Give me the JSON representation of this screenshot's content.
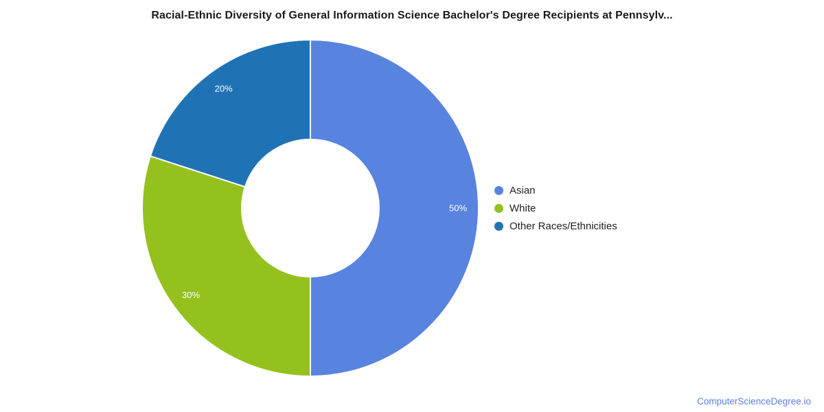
{
  "chart_data": {
    "type": "pie",
    "donut": true,
    "title": "Racial-Ethnic Diversity of General Information Science Bachelor's Degree Recipients at Pennsylv...",
    "start_angle_deg": 0,
    "direction": "clockwise",
    "label_color": "#ffffff",
    "legend_position": "right",
    "slices": [
      {
        "label": "Asian",
        "value": 50,
        "display": "50%",
        "color": "#5884e0"
      },
      {
        "label": "White",
        "value": 30,
        "display": "30%",
        "color": "#95c11e"
      },
      {
        "label": "Other Races/Ethnicities",
        "value": 20,
        "display": "20%",
        "color": "#1f73b5"
      }
    ]
  },
  "footer": {
    "link_text": "ComputerScienceDegree.io",
    "link_color": "#5b7edb"
  }
}
